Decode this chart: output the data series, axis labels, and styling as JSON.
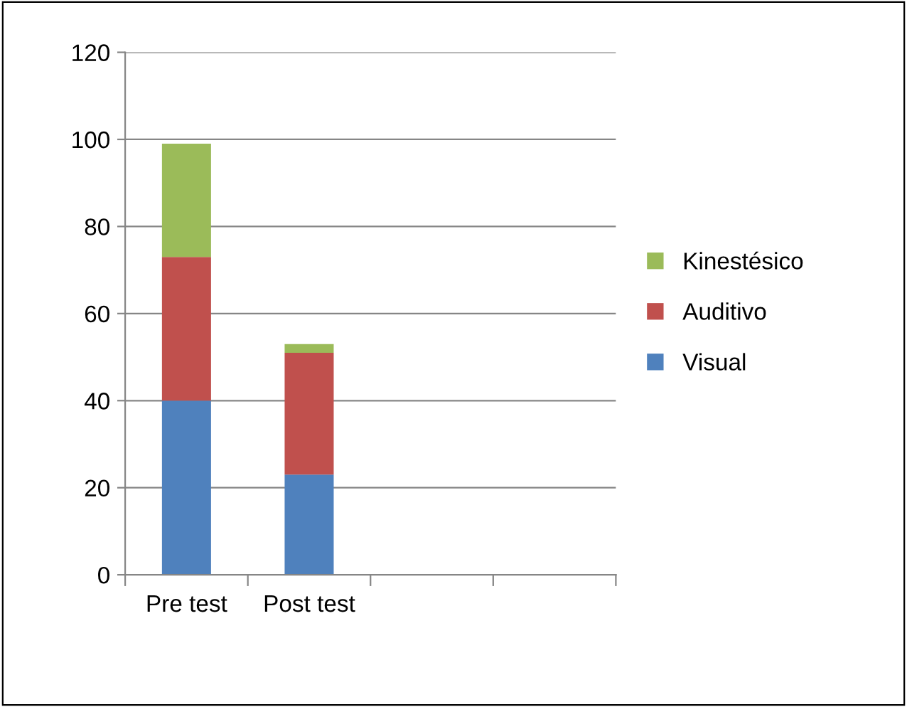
{
  "chart_data": {
    "type": "bar",
    "stacked": true,
    "categories": [
      "Pre test",
      "Post test",
      null,
      null
    ],
    "series": [
      {
        "name": "Visual",
        "color": "#4f81bd",
        "values": [
          40,
          23,
          null,
          null
        ]
      },
      {
        "name": "Auditivo",
        "color": "#c0504d",
        "values": [
          33,
          28,
          null,
          null
        ]
      },
      {
        "name": "Kinestésico",
        "color": "#9bbb59",
        "values": [
          26,
          2,
          null,
          null
        ]
      }
    ],
    "ylim": [
      0,
      120
    ],
    "yticks": [
      0,
      20,
      40,
      60,
      80,
      100,
      120
    ],
    "grid": "y",
    "legend": "right"
  }
}
